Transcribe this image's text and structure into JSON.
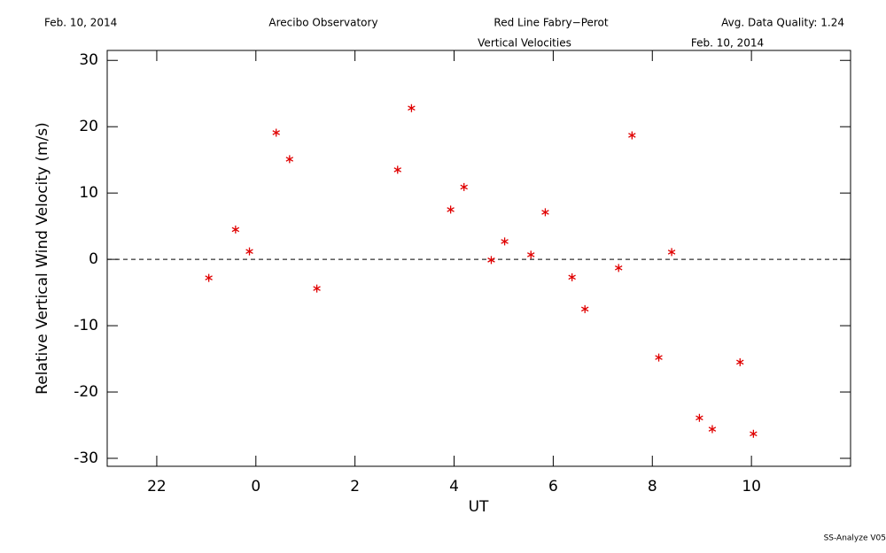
{
  "chart_data": {
    "type": "scatter",
    "header": [
      "Feb. 10, 2014",
      "Arecibo Observatory",
      "Red Line Fabry−Perot",
      "Avg. Data Quality: 1.24"
    ],
    "title": "Vertical Velocities",
    "date": "Feb. 10, 2014",
    "xlabel": "UT",
    "ylabel": "Relative Vertical Wind Velocity (m/s)",
    "footer": "SS-Analyze V05",
    "xlim": [
      -3,
      12
    ],
    "ylim": [
      -31.2,
      31.5
    ],
    "xticks": [
      {
        "value": -2,
        "label": "22"
      },
      0,
      2,
      4,
      6,
      8,
      10
    ],
    "yticks": [
      -30,
      -20,
      -10,
      0,
      10,
      20,
      30
    ],
    "reference_line": 0,
    "series": [
      {
        "color": "#e00000",
        "x": [
          -0.95,
          -0.41,
          -0.13,
          0.41,
          0.68,
          1.23,
          2.86,
          3.14,
          3.93,
          4.2,
          4.75,
          5.02,
          5.55,
          5.84,
          6.38,
          6.64,
          7.32,
          7.59,
          8.13,
          8.39,
          8.95,
          9.21,
          9.77,
          10.04
        ],
        "values": [
          -2.8,
          4.5,
          1.2,
          19.1,
          15.1,
          -4.4,
          13.5,
          22.8,
          7.5,
          10.9,
          -0.1,
          2.7,
          0.7,
          7.1,
          -2.7,
          -7.5,
          -1.3,
          18.7,
          -14.8,
          1.1,
          -23.9,
          -25.6,
          -15.5,
          -26.3
        ]
      }
    ]
  }
}
